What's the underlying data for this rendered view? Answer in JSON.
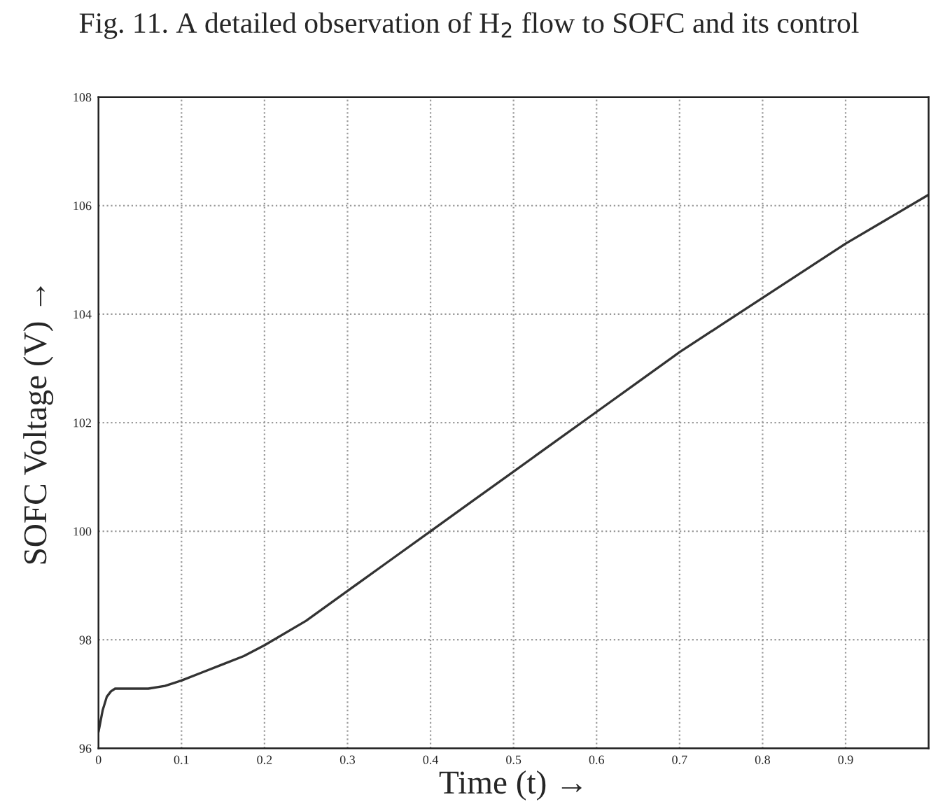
{
  "chart_data": {
    "type": "line",
    "title": "Fig. 11. A detailed observation of H$_{2}$ flow to SOFC and its control",
    "xlabel": "Time (t) →",
    "ylabel": "SOFC Voltage (V) →",
    "x": [
      0,
      0.005,
      0.01,
      0.015,
      0.02,
      0.03,
      0.04,
      0.06,
      0.08,
      0.1,
      0.125,
      0.15,
      0.175,
      0.2,
      0.25,
      0.3,
      0.35,
      0.4,
      0.45,
      0.5,
      0.55,
      0.6,
      0.65,
      0.7,
      0.75,
      0.8,
      0.85,
      0.9,
      0.95,
      1.0
    ],
    "series": [
      {
        "color": "#333333",
        "values": [
          96.3,
          96.7,
          96.95,
          97.05,
          97.1,
          97.1,
          97.1,
          97.1,
          97.15,
          97.25,
          97.4,
          97.55,
          97.7,
          97.9,
          98.35,
          98.9,
          99.45,
          100.0,
          100.55,
          101.1,
          101.65,
          102.2,
          102.75,
          103.3,
          103.8,
          104.3,
          104.8,
          105.3,
          105.75,
          106.2
        ]
      }
    ],
    "xlim": [
      0,
      1
    ],
    "ylim": [
      96,
      108
    ],
    "xticks": [
      0,
      0.1,
      0.2,
      0.3,
      0.4,
      0.5,
      0.6,
      0.7,
      0.8,
      0.9
    ],
    "yticks": [
      96,
      98,
      100,
      102,
      104,
      106,
      108
    ],
    "grid": true,
    "legend": false,
    "marker": "none",
    "line_style": "solid"
  }
}
